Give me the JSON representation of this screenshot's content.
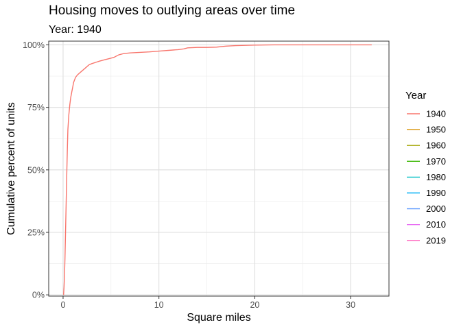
{
  "title": "Housing moves to outlying areas over time",
  "subtitle": "Year: 1940",
  "chart_data": {
    "type": "line",
    "xlabel": "Square miles",
    "ylabel": "Cumulative percent of units",
    "xlim": [
      -1.5,
      34
    ],
    "ylim": [
      -0.5,
      101.5
    ],
    "x_ticks": [
      0,
      10,
      20,
      30
    ],
    "x_tick_labels": [
      "0",
      "10",
      "20",
      "30"
    ],
    "y_ticks": [
      0,
      25,
      50,
      75,
      100
    ],
    "y_tick_labels": [
      "0%",
      "25%",
      "50%",
      "75%",
      "100%"
    ],
    "grid": true,
    "legend": {
      "title": "Year",
      "position": "right",
      "entries": [
        {
          "label": "1940",
          "color": "#F8766D"
        },
        {
          "label": "1950",
          "color": "#D89000"
        },
        {
          "label": "1960",
          "color": "#A3A500"
        },
        {
          "label": "1970",
          "color": "#39B600"
        },
        {
          "label": "1980",
          "color": "#00BFC4"
        },
        {
          "label": "1990",
          "color": "#00B0F6"
        },
        {
          "label": "2000",
          "color": "#619CFF"
        },
        {
          "label": "2010",
          "color": "#E76BF3"
        },
        {
          "label": "2019",
          "color": "#FF62BC"
        }
      ]
    },
    "series": [
      {
        "name": "1940",
        "color": "#F8766D",
        "points": [
          [
            0.05,
            0
          ],
          [
            0.1,
            3
          ],
          [
            0.15,
            8
          ],
          [
            0.2,
            15
          ],
          [
            0.25,
            24
          ],
          [
            0.3,
            33
          ],
          [
            0.35,
            42
          ],
          [
            0.4,
            51
          ],
          [
            0.45,
            59
          ],
          [
            0.5,
            66
          ],
          [
            0.55,
            69
          ],
          [
            0.6,
            72
          ],
          [
            0.7,
            76
          ],
          [
            0.8,
            79
          ],
          [
            0.9,
            81
          ],
          [
            1.0,
            83
          ],
          [
            1.1,
            85
          ],
          [
            1.3,
            87
          ],
          [
            1.5,
            88
          ],
          [
            1.8,
            89
          ],
          [
            2.1,
            90
          ],
          [
            2.4,
            91
          ],
          [
            2.7,
            92
          ],
          [
            3.0,
            92.5
          ],
          [
            3.4,
            93
          ],
          [
            3.8,
            93.5
          ],
          [
            4.3,
            94
          ],
          [
            4.8,
            94.5
          ],
          [
            5.3,
            95
          ],
          [
            5.8,
            96
          ],
          [
            6.3,
            96.5
          ],
          [
            7,
            96.8
          ],
          [
            8,
            97
          ],
          [
            9,
            97.2
          ],
          [
            10,
            97.5
          ],
          [
            11,
            97.8
          ],
          [
            12,
            98.1
          ],
          [
            12.6,
            98.4
          ],
          [
            13,
            98.8
          ],
          [
            14,
            99
          ],
          [
            15,
            99
          ],
          [
            16,
            99.1
          ],
          [
            17,
            99.5
          ],
          [
            18,
            99.7
          ],
          [
            19,
            99.8
          ],
          [
            20,
            99.9
          ],
          [
            22,
            100
          ],
          [
            25,
            100
          ],
          [
            28,
            100
          ],
          [
            30,
            100
          ],
          [
            32.2,
            100
          ]
        ]
      }
    ]
  }
}
